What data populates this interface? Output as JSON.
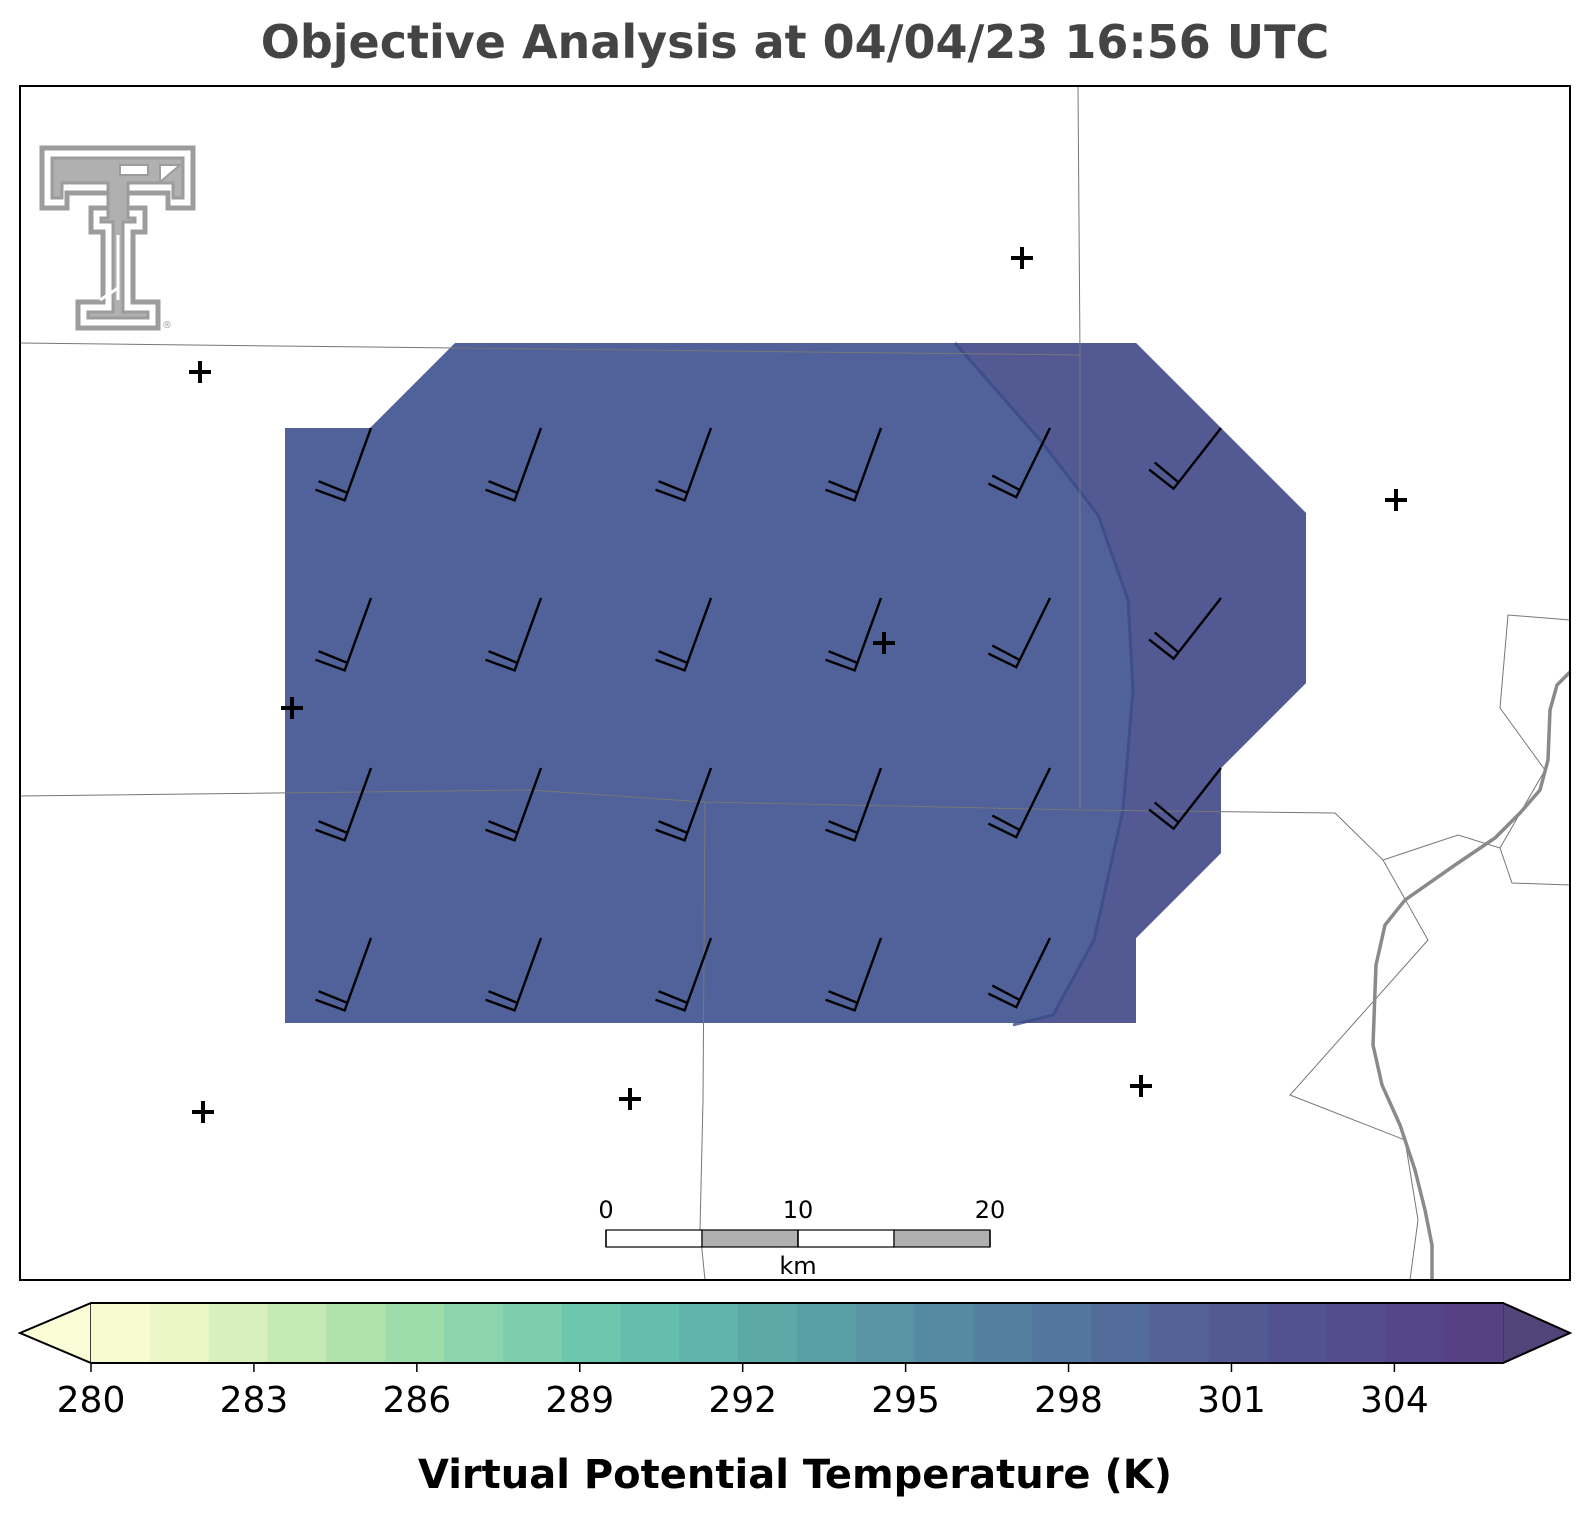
{
  "title": "Objective Analysis at 04/04/23 16:56 UTC",
  "colorbar": {
    "label": "Virtual Potential Temperature (K)",
    "ticks": [
      "280",
      "283",
      "286",
      "289",
      "292",
      "295",
      "298",
      "301",
      "304"
    ],
    "min": 280,
    "max": 306,
    "colors": [
      "#f8fbcf",
      "#eaf6c6",
      "#d8f0bd",
      "#c4e9b3",
      "#b0e2ac",
      "#9edcab",
      "#8cd5ac",
      "#7ccead",
      "#6dc7ae",
      "#65bdae",
      "#60b3ab",
      "#5ca9a8",
      "#5a9ea6",
      "#5894a4",
      "#568aa2",
      "#5480a0",
      "#52769d",
      "#526c9a",
      "#526297",
      "#525993",
      "#535290",
      "#544c8d",
      "#554689",
      "#564184"
    ],
    "under_color": "#fbfdd7",
    "over_color": "#514479"
  },
  "analysis": {
    "field_color_main": "#51619a",
    "field_color_east": "#525993"
  },
  "scale_bar": {
    "labels": [
      "0",
      "10",
      "20"
    ],
    "unit": "km"
  },
  "logo": {
    "letter": "T",
    "registered": "®"
  },
  "icons": {
    "station": "plus-marker-icon",
    "wind": "wind-barb-icon",
    "logo": "texas-tech-logo-icon"
  }
}
